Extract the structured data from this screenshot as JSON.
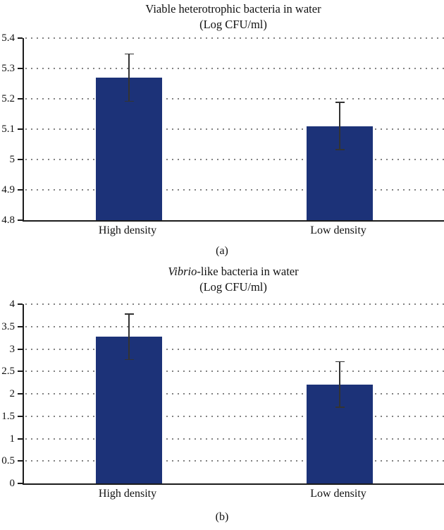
{
  "figure": {
    "bar_color": "#1c3278",
    "axis_color": "#1c1c1c",
    "grid_color": "#828282",
    "error_bar_color": "#333333"
  },
  "chart_data": [
    {
      "type": "bar",
      "panel_label": "(a)",
      "title": "Viable heterotrophic bacteria in water",
      "title_em": "",
      "title_rest": "Viable heterotrophic bacteria in water",
      "subtitle": "(Log CFU/ml)",
      "categories": [
        "High density",
        "Low density"
      ],
      "values": [
        5.27,
        5.11
      ],
      "errors": [
        0.08,
        0.08
      ],
      "ylim": [
        4.8,
        5.4
      ],
      "ytick_step": 0.1,
      "yticks": [
        "5.4",
        "5.3",
        "5.2",
        "5.1",
        "5",
        "4.9",
        "4.8"
      ],
      "xlabel": "",
      "ylabel": "",
      "grid": "dotted-horizontal",
      "legend": "none"
    },
    {
      "type": "bar",
      "panel_label": "(b)",
      "title": "Vibrio-like bacteria in water",
      "title_em": "Vibrio",
      "title_rest": "-like bacteria in water",
      "subtitle": "(Log CFU/ml)",
      "categories": [
        "High density",
        "Low density"
      ],
      "values": [
        3.27,
        2.21
      ],
      "errors": [
        0.52,
        0.52
      ],
      "ylim": [
        0,
        4
      ],
      "ytick_step": 0.5,
      "yticks": [
        "4",
        "3.5",
        "3",
        "2.5",
        "2",
        "1.5",
        "1",
        "0.5",
        "0"
      ],
      "xlabel": "",
      "ylabel": "",
      "grid": "dotted-horizontal",
      "legend": "none"
    }
  ]
}
